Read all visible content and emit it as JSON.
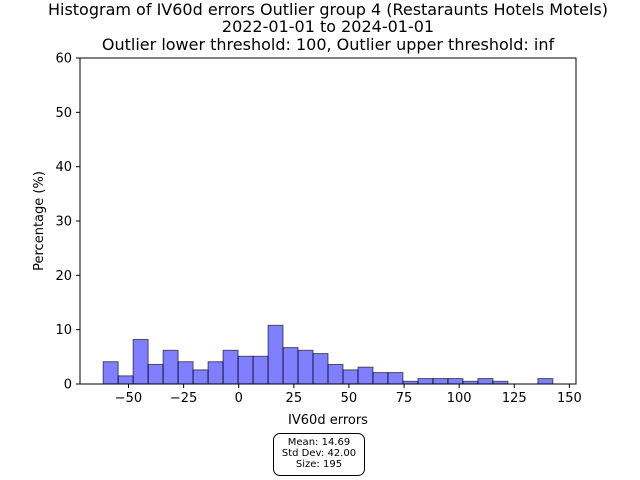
{
  "chart_data": {
    "type": "bar",
    "title": [
      "Histogram of IV60d errors Outlier group 4 (Restaraunts Hotels Motels)",
      "2022-01-01 to 2024-01-01",
      "Outlier lower threshold: 100, Outlier upper threshold: inf"
    ],
    "xlabel": "IV60d errors",
    "ylabel": "Percentage (%)",
    "xlim": [
      -72,
      153
    ],
    "ylim": [
      0,
      60
    ],
    "xticks": [
      -50,
      -25,
      0,
      25,
      50,
      75,
      100,
      125,
      150
    ],
    "xtick_labels": [
      "−50",
      "−25",
      "0",
      "25",
      "50",
      "75",
      "100",
      "125",
      "150"
    ],
    "yticks": [
      0,
      10,
      20,
      30,
      40,
      50,
      60
    ],
    "ytick_labels": [
      "0",
      "10",
      "20",
      "30",
      "40",
      "50",
      "60"
    ],
    "bin_start": -61.5,
    "bin_width": 6.8,
    "values": [
      4.1,
      1.5,
      8.2,
      3.6,
      6.2,
      4.1,
      2.6,
      4.1,
      6.2,
      5.1,
      5.1,
      10.8,
      6.7,
      6.2,
      5.6,
      3.6,
      2.6,
      3.1,
      2.1,
      2.1,
      0.5,
      1.0,
      1.0,
      1.0,
      0.5,
      1.0,
      0.5,
      0,
      0,
      1.0
    ],
    "bar_color": "#0000ff",
    "bar_alpha": 0.5,
    "edge_color": "#000000",
    "grid": false
  },
  "stats": {
    "mean": "Mean: 14.69",
    "std": "Std Dev: 42.00",
    "size": "Size: 195"
  }
}
